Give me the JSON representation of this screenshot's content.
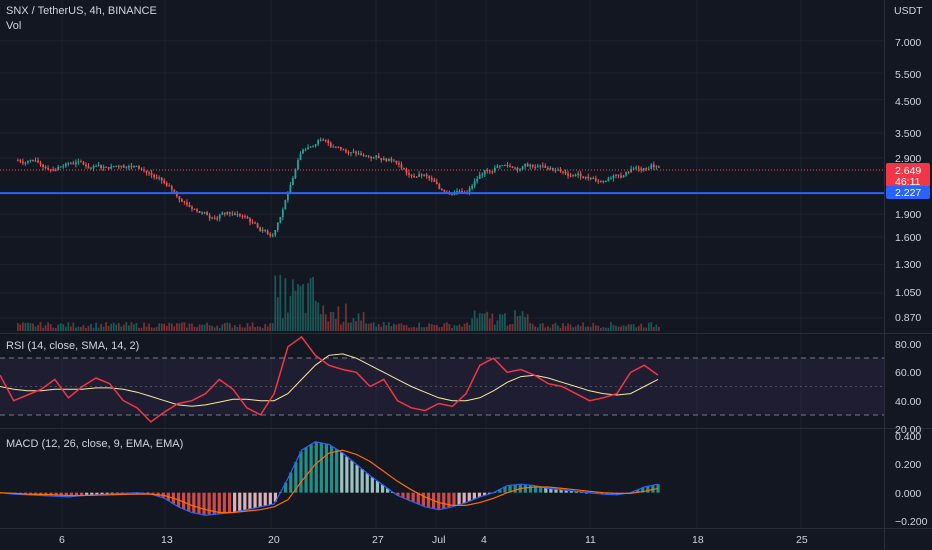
{
  "header": {
    "title": "SNX / TetherUS, 4h, BINANCE",
    "sub": "Vol",
    "currency": "USDT"
  },
  "colors": {
    "bg": "#131722",
    "up": "#26a69a",
    "down": "#ef5350",
    "blue_line": "#2962ff",
    "rsi": "#f23645",
    "rsi_ma": "#f7e9a0",
    "macd": "#2962ff",
    "signal": "#ff6d00"
  },
  "price_panel": {
    "ticks": [
      "7.000",
      "5.500",
      "4.500",
      "3.500",
      "2.900",
      "1.900",
      "1.600",
      "1.300",
      "1.050",
      "0.870"
    ],
    "current_price": "2.649",
    "countdown": "46:11",
    "line_price": "2.227"
  },
  "rsi_panel": {
    "label": "RSI (14, close, SMA, 14, 2)",
    "ticks": [
      "80.00",
      "60.00",
      "40.00",
      "20.00"
    ]
  },
  "macd_panel": {
    "label": "MACD (12, 26, close, 9, EMA, EMA)",
    "ticks": [
      "0.400",
      "0.200",
      "0.000",
      "−0.200"
    ]
  },
  "x_axis": {
    "labels": [
      "6",
      "13",
      "20",
      "27",
      "Jul",
      "4",
      "11",
      "18",
      "25"
    ]
  },
  "chart_data": [
    {
      "type": "candlestick",
      "title": "SNX / TetherUS, 4h, BINANCE",
      "y_scale": "log",
      "y_ticks": [
        7.0,
        5.5,
        4.5,
        3.5,
        2.9,
        1.9,
        1.6,
        1.3,
        1.05,
        0.87
      ],
      "x_labels": [
        "6",
        "13",
        "20",
        "27",
        "Jul",
        "4",
        "11",
        "18",
        "25"
      ],
      "daily_close": [
        {
          "day": "Jun 3",
          "close": 2.85
        },
        {
          "day": "Jun 4",
          "close": 2.7
        },
        {
          "day": "Jun 5",
          "close": 2.72
        },
        {
          "day": "Jun 6",
          "close": 2.8
        },
        {
          "day": "Jun 7",
          "close": 2.68
        },
        {
          "day": "Jun 8",
          "close": 2.7
        },
        {
          "day": "Jun 9",
          "close": 2.75
        },
        {
          "day": "Jun 10",
          "close": 2.72
        },
        {
          "day": "Jun 11",
          "close": 2.55
        },
        {
          "day": "Jun 12",
          "close": 2.35
        },
        {
          "day": "Jun 13",
          "close": 2.1
        },
        {
          "day": "Jun 14",
          "close": 1.95
        },
        {
          "day": "Jun 15",
          "close": 1.85
        },
        {
          "day": "Jun 16",
          "close": 1.92
        },
        {
          "day": "Jun 17",
          "close": 1.88
        },
        {
          "day": "Jun 18",
          "close": 1.72
        },
        {
          "day": "Jun 19",
          "close": 1.62
        },
        {
          "day": "Jun 20",
          "close": 2.2
        },
        {
          "day": "Jun 21",
          "close": 3.1
        },
        {
          "day": "Jun 22",
          "close": 3.3
        },
        {
          "day": "Jun 23",
          "close": 3.15
        },
        {
          "day": "Jun 24",
          "close": 3.0
        },
        {
          "day": "Jun 25",
          "close": 2.95
        },
        {
          "day": "Jun 26",
          "close": 2.9
        },
        {
          "day": "Jun 27",
          "close": 2.85
        },
        {
          "day": "Jun 28",
          "close": 2.55
        },
        {
          "day": "Jun 29",
          "close": 2.55
        },
        {
          "day": "Jun 30",
          "close": 2.3
        },
        {
          "day": "Jul 1",
          "close": 2.25
        },
        {
          "day": "Jul 2",
          "close": 2.3
        },
        {
          "day": "Jul 3",
          "close": 2.65
        },
        {
          "day": "Jul 4",
          "close": 2.75
        },
        {
          "day": "Jul 5",
          "close": 2.7
        },
        {
          "day": "Jul 6",
          "close": 2.75
        },
        {
          "day": "Jul 7",
          "close": 2.7
        },
        {
          "day": "Jul 8",
          "close": 2.62
        },
        {
          "day": "Jul 9",
          "close": 2.55
        },
        {
          "day": "Jul 10",
          "close": 2.5
        },
        {
          "day": "Jul 11",
          "close": 2.45
        },
        {
          "day": "Jul 12",
          "close": 2.5
        },
        {
          "day": "Jul 13",
          "close": 2.7
        },
        {
          "day": "Jul 14",
          "close": 2.75
        },
        {
          "day": "Jul 15",
          "close": 2.65
        }
      ],
      "horizontal_line": 2.227,
      "last_price": 2.649
    },
    {
      "type": "line",
      "title": "RSI (14, close, SMA, 14, 2)",
      "y_ticks": [
        80,
        60,
        40,
        20
      ],
      "band": [
        30,
        70
      ],
      "series": [
        {
          "values": [
            58,
            40,
            44,
            48,
            55,
            42,
            50,
            56,
            52,
            40,
            35,
            25,
            32,
            38,
            40,
            45,
            55,
            48,
            35,
            30,
            45,
            78,
            85,
            72,
            65,
            62,
            60,
            50,
            55,
            40,
            35,
            33,
            38,
            36,
            45,
            65,
            70,
            60,
            62,
            58,
            52,
            50,
            45,
            40,
            42,
            45,
            60,
            65,
            58
          ]
        },
        {
          "values": [
            50,
            48,
            47,
            47,
            48,
            48,
            48,
            49,
            49,
            48,
            46,
            43,
            40,
            37,
            36,
            37,
            39,
            41,
            41,
            40,
            40,
            45,
            55,
            65,
            72,
            73,
            70,
            65,
            60,
            55,
            50,
            46,
            42,
            40,
            40,
            42,
            47,
            53,
            57,
            58,
            56,
            53,
            50,
            47,
            45,
            44,
            45,
            50,
            55
          ]
        }
      ]
    },
    {
      "type": "bar",
      "title": "MACD (12, 26, close, 9, EMA, EMA)",
      "y_ticks": [
        0.4,
        0.2,
        0.0,
        -0.2
      ],
      "series": [
        {
          "values": [
            0.0,
            -0.01,
            -0.015,
            -0.02,
            -0.025,
            -0.03,
            -0.02,
            -0.015,
            -0.01,
            -0.005,
            0.0,
            -0.01,
            -0.04,
            -0.1,
            -0.14,
            -0.16,
            -0.15,
            -0.14,
            -0.12,
            -0.1,
            -0.08,
            0.1,
            0.3,
            0.36,
            0.34,
            0.28,
            0.2,
            0.12,
            0.05,
            -0.02,
            -0.06,
            -0.1,
            -0.12,
            -0.1,
            -0.07,
            -0.03,
            0.0,
            0.05,
            0.06,
            0.05,
            0.03,
            0.02,
            0.01,
            0.0,
            -0.01,
            -0.015,
            0.0,
            0.04,
            0.06
          ]
        },
        {
          "values": [
            0.0,
            -0.005,
            -0.01,
            -0.012,
            -0.015,
            -0.02,
            -0.02,
            -0.018,
            -0.015,
            -0.012,
            -0.01,
            -0.01,
            -0.02,
            -0.05,
            -0.09,
            -0.12,
            -0.14,
            -0.14,
            -0.13,
            -0.12,
            -0.1,
            -0.05,
            0.08,
            0.2,
            0.28,
            0.3,
            0.27,
            0.22,
            0.15,
            0.08,
            0.02,
            -0.03,
            -0.07,
            -0.09,
            -0.09,
            -0.07,
            -0.04,
            0.0,
            0.03,
            0.04,
            0.04,
            0.03,
            0.02,
            0.01,
            0.0,
            -0.005,
            -0.005,
            0.01,
            0.03
          ]
        }
      ]
    }
  ]
}
